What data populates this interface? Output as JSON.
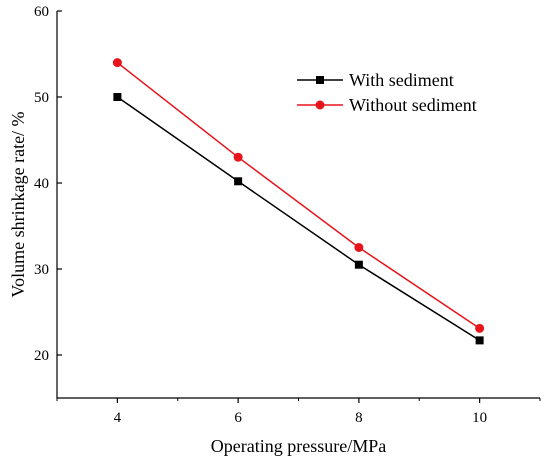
{
  "chart_data": {
    "type": "line",
    "title": "",
    "xlabel": "Operating pressure/MPa",
    "ylabel": "Volume shrinkage rate/ %",
    "x": [
      4,
      6,
      8,
      10
    ],
    "xlim": [
      3,
      11
    ],
    "ylim": [
      15,
      60
    ],
    "xticks": [
      4,
      6,
      8,
      10
    ],
    "yticks": [
      20,
      30,
      40,
      50,
      60
    ],
    "grid": false,
    "legend_position": "top-right",
    "series": [
      {
        "name": "With sediment",
        "values": [
          50.0,
          40.2,
          30.5,
          21.7
        ],
        "color": "#000000",
        "marker": "square"
      },
      {
        "name": "Without sediment",
        "values": [
          54.0,
          43.0,
          32.5,
          23.1
        ],
        "color": "#e8141b",
        "marker": "circle"
      }
    ]
  }
}
